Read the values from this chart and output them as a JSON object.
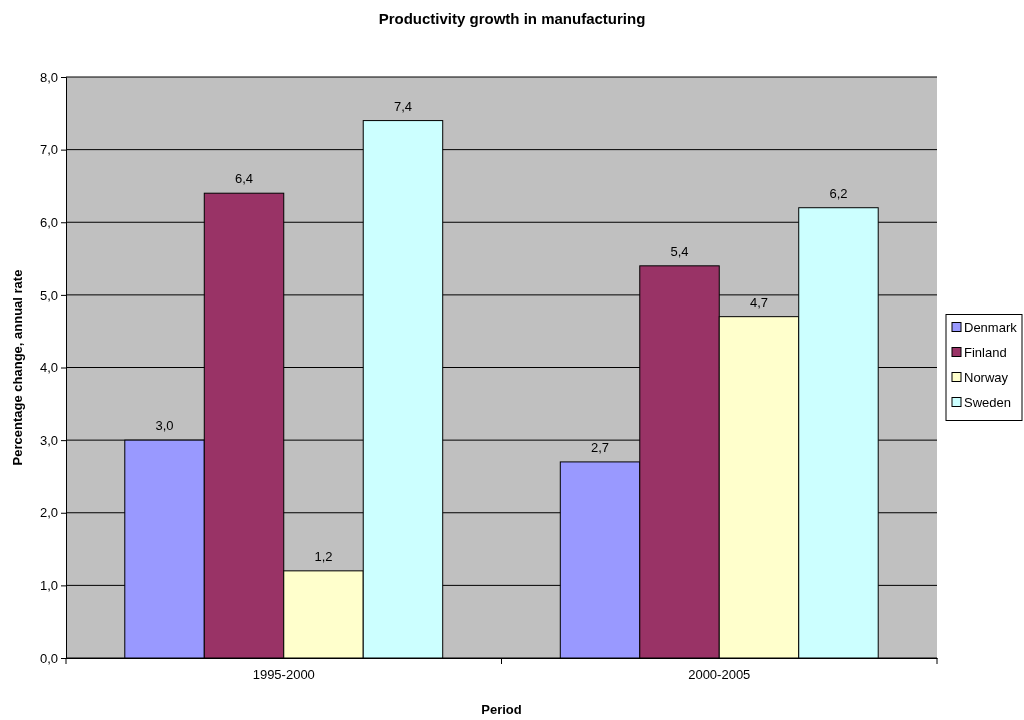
{
  "chart_data": {
    "type": "bar",
    "title": "Productivity growth in manufacturing",
    "xlabel": "Period",
    "ylabel": "Percentage change, annual rate",
    "categories": [
      "1995-2000",
      "2000-2005"
    ],
    "series": [
      {
        "name": "Denmark",
        "color": "#9999ff",
        "values": [
          3.0,
          2.7
        ],
        "value_labels": [
          "3,0",
          "2,7"
        ]
      },
      {
        "name": "Finland",
        "color": "#993366",
        "values": [
          6.4,
          5.4
        ],
        "value_labels": [
          "6,4",
          "5,4"
        ]
      },
      {
        "name": "Norway",
        "color": "#ffffcc",
        "values": [
          1.2,
          4.7
        ],
        "value_labels": [
          "1,2",
          "4,7"
        ]
      },
      {
        "name": "Sweden",
        "color": "#ccffff",
        "values": [
          7.4,
          6.2
        ],
        "value_labels": [
          "7,4",
          "6,2"
        ]
      }
    ],
    "ylim": [
      0,
      8
    ],
    "yticks": [
      {
        "value": 0,
        "label": "0,0"
      },
      {
        "value": 1,
        "label": "1,0"
      },
      {
        "value": 2,
        "label": "2,0"
      },
      {
        "value": 3,
        "label": "3,0"
      },
      {
        "value": 4,
        "label": "4,0"
      },
      {
        "value": 5,
        "label": "5,0"
      },
      {
        "value": 6,
        "label": "6,0"
      },
      {
        "value": 7,
        "label": "7,0"
      },
      {
        "value": 8,
        "label": "8,0"
      }
    ],
    "grid": "y",
    "legend": "right"
  }
}
